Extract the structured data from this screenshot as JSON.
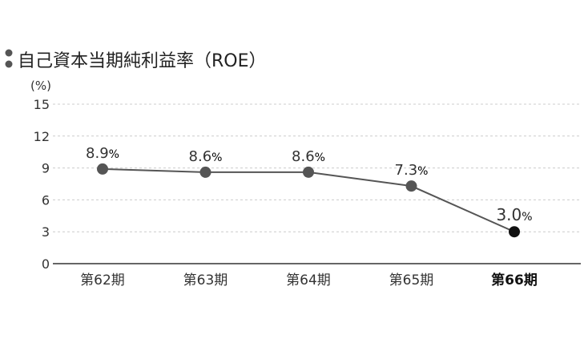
{
  "chart_data": {
    "type": "line",
    "title": "自己資本当期純利益率（ROE）",
    "ylabel": "(%)",
    "xlabel": "",
    "categories": [
      "第62期",
      "第63期",
      "第64期",
      "第65期",
      "第66期"
    ],
    "values": [
      8.9,
      8.6,
      8.6,
      7.3,
      3.0
    ],
    "data_labels": [
      "8.9",
      "8.6",
      "8.6",
      "7.3",
      "3.0"
    ],
    "label_unit": "%",
    "highlight_index": 4,
    "ylim": [
      0,
      15
    ],
    "yticks": [
      0,
      3,
      6,
      9,
      12,
      15
    ],
    "grid": true,
    "legend": "none",
    "colors": {
      "line": "#555555",
      "marker": "#555555",
      "highlight_marker": "#111111",
      "title_bullet": "#555555",
      "grid": "#cccccc",
      "axis": "#333333"
    }
  }
}
